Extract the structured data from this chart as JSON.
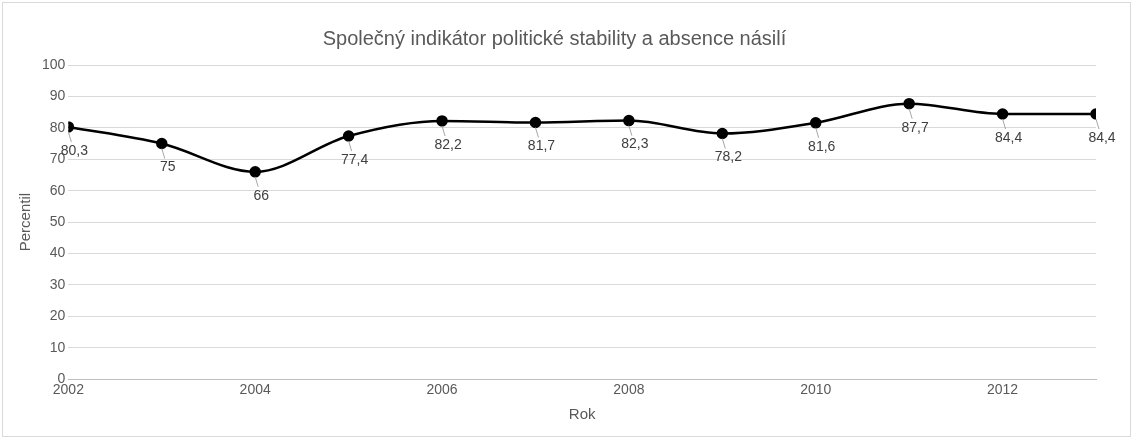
{
  "chart_data": {
    "type": "line",
    "title": "Společný indikátor politické stability a absence násilí",
    "xlabel": "Rok",
    "ylabel": "Percentil",
    "x": [
      2002,
      2003,
      2004,
      2005,
      2006,
      2007,
      2008,
      2009,
      2010,
      2011,
      2012,
      2013
    ],
    "series": [
      {
        "color": "#000000",
        "values": [
          80.3,
          75,
          66,
          77.4,
          82.2,
          81.7,
          82.3,
          78.2,
          81.6,
          87.7,
          84.4,
          84.4
        ],
        "value_labels": [
          "80,3",
          "75",
          "66",
          "77,4",
          "82,2",
          "81,7",
          "82,3",
          "78,2",
          "81,6",
          "87,7",
          "84,4",
          "84,4"
        ]
      }
    ],
    "xlim": [
      2002,
      2013
    ],
    "xticks": [
      2002,
      2004,
      2006,
      2008,
      2010,
      2012
    ],
    "ylim": [
      0,
      100
    ],
    "yticks": [
      0,
      10,
      20,
      30,
      40,
      50,
      60,
      70,
      80,
      90,
      100
    ],
    "grid": "y",
    "legend": false,
    "marker": "circle",
    "line_style": "solid"
  }
}
